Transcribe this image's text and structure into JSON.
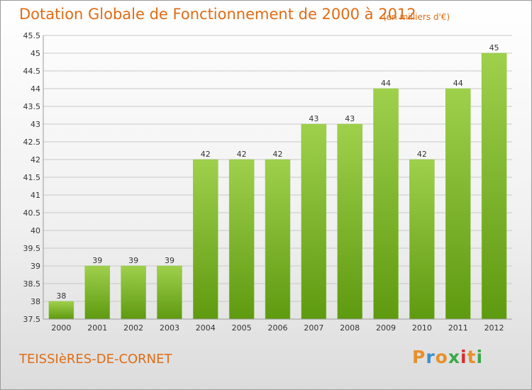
{
  "header": {
    "title": "Dotation Globale de Fonctionnement de 2000 à 2012",
    "unit": "(en milliers d'€)"
  },
  "footer": {
    "commune": "TEISSIèRES-DE-CORNET",
    "logo": "Proxiti",
    "logo_colors": [
      "#e8902a",
      "#3a8fd0",
      "#e8902a",
      "#3aa848",
      "#d82e2e",
      "#e8902a",
      "#3aa848"
    ]
  },
  "colors": {
    "title": "#e06c14",
    "bar_top": "#9fd04c",
    "bar_bottom": "#5e9a10",
    "grid": "#c8c8c8"
  },
  "chart_data": {
    "type": "bar",
    "title": "Dotation Globale de Fonctionnement de 2000 à 2012",
    "subtitle": "(en milliers d'€)",
    "xlabel": "",
    "ylabel": "",
    "categories": [
      "2000",
      "2001",
      "2002",
      "2003",
      "2004",
      "2005",
      "2006",
      "2007",
      "2008",
      "2009",
      "2010",
      "2011",
      "2012"
    ],
    "values": [
      38,
      39,
      39,
      39,
      42,
      42,
      42,
      43,
      43,
      44,
      42,
      44,
      45
    ],
    "data_labels": [
      "38",
      "39",
      "39",
      "39",
      "42",
      "42",
      "42",
      "43",
      "43",
      "44",
      "42",
      "44",
      "45"
    ],
    "ylim": [
      37.5,
      45.5
    ],
    "yticks": [
      37.5,
      38,
      38.5,
      39,
      39.5,
      40,
      40.5,
      41,
      41.5,
      42,
      42.5,
      43,
      43.5,
      44,
      44.5,
      45,
      45.5
    ],
    "ytick_labels": [
      "37.5",
      "38",
      "38.5",
      "39",
      "39.5",
      "40",
      "40.5",
      "41",
      "41.5",
      "42",
      "42.5",
      "43",
      "43.5",
      "44",
      "44.5",
      "45",
      "45.5"
    ],
    "grid": true,
    "legend": "none"
  }
}
